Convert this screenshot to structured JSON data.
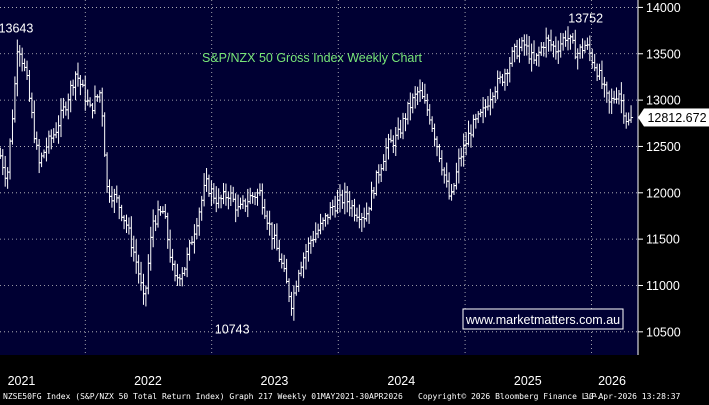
{
  "chart_data": {
    "type": "ohlc",
    "title": "S&P/NZX 50 Gross Index Weekly Chart",
    "source_badge": "www.marketmatters.com.au",
    "last_value_label": "12812.672",
    "last_value": 12812.672,
    "y_ticks": [
      10500,
      11000,
      11500,
      12000,
      12500,
      13000,
      13500,
      14000
    ],
    "ylim": [
      10250,
      14080
    ],
    "xlim": [
      "2021-04-30",
      "2026-05-15"
    ],
    "x_labels": [
      {
        "label": "2021",
        "date": "2021-07-01"
      },
      {
        "label": "2022",
        "date": "2022-07-01"
      },
      {
        "label": "2023",
        "date": "2023-07-01"
      },
      {
        "label": "2024",
        "date": "2024-07-01"
      },
      {
        "label": "2025",
        "date": "2025-07-01"
      },
      {
        "label": "2026",
        "date": "2026-03-01"
      }
    ],
    "year_boundaries": [
      "2022-01-01",
      "2023-01-01",
      "2024-01-01",
      "2025-01-01",
      "2026-01-01"
    ],
    "annotations": [
      {
        "label": "13643",
        "date": "2021-06-15",
        "value": 13643,
        "position": "above"
      },
      {
        "label": "10743",
        "date": "2023-03-01",
        "value": 10743,
        "position": "below"
      },
      {
        "label": "13752",
        "date": "2025-12-15",
        "value": 13752,
        "position": "above"
      }
    ],
    "series": [
      {
        "points": [
          {
            "date": "2021-05-01",
            "close": 12400
          },
          {
            "date": "2021-05-20",
            "close": 12150
          },
          {
            "date": "2021-06-10",
            "close": 13050
          },
          {
            "date": "2021-06-20",
            "close": 13643
          },
          {
            "date": "2021-07-15",
            "close": 13250
          },
          {
            "date": "2021-08-20",
            "close": 12300
          },
          {
            "date": "2021-09-10",
            "close": 12500
          },
          {
            "date": "2021-10-05",
            "close": 12650
          },
          {
            "date": "2021-11-05",
            "close": 12950
          },
          {
            "date": "2021-12-05",
            "close": 13300
          },
          {
            "date": "2022-01-15",
            "close": 12900
          },
          {
            "date": "2022-02-15",
            "close": 13100
          },
          {
            "date": "2022-03-05",
            "close": 12050
          },
          {
            "date": "2022-04-05",
            "close": 11900
          },
          {
            "date": "2022-05-01",
            "close": 11650
          },
          {
            "date": "2022-06-01",
            "close": 11200
          },
          {
            "date": "2022-06-20",
            "close": 10800
          },
          {
            "date": "2022-07-15",
            "close": 11700
          },
          {
            "date": "2022-08-15",
            "close": 11800
          },
          {
            "date": "2022-09-15",
            "close": 11050
          },
          {
            "date": "2022-10-15",
            "close": 11200
          },
          {
            "date": "2022-11-15",
            "close": 11650
          },
          {
            "date": "2022-12-15",
            "close": 12100
          },
          {
            "date": "2023-01-20",
            "close": 11900
          },
          {
            "date": "2023-02-20",
            "close": 12000
          },
          {
            "date": "2023-03-20",
            "close": 11800
          },
          {
            "date": "2023-04-20",
            "close": 11950
          },
          {
            "date": "2023-05-20",
            "close": 12000
          },
          {
            "date": "2023-06-20",
            "close": 11600
          },
          {
            "date": "2023-07-20",
            "close": 11250
          },
          {
            "date": "2023-08-20",
            "close": 10800
          },
          {
            "date": "2023-09-10",
            "close": 11200
          },
          {
            "date": "2023-10-15",
            "close": 11500
          },
          {
            "date": "2023-11-15",
            "close": 11650
          },
          {
            "date": "2023-12-15",
            "close": 11850
          },
          {
            "date": "2024-01-20",
            "close": 11950
          },
          {
            "date": "2024-02-20",
            "close": 11800
          },
          {
            "date": "2024-03-20",
            "close": 11750
          },
          {
            "date": "2024-04-20",
            "close": 12150
          },
          {
            "date": "2024-05-20",
            "close": 12500
          },
          {
            "date": "2024-06-20",
            "close": 12600
          },
          {
            "date": "2024-07-20",
            "close": 12900
          },
          {
            "date": "2024-08-20",
            "close": 13100
          },
          {
            "date": "2024-09-20",
            "close": 12850
          },
          {
            "date": "2024-10-20",
            "close": 12400
          },
          {
            "date": "2024-11-20",
            "close": 11900
          },
          {
            "date": "2024-12-15",
            "close": 12350
          },
          {
            "date": "2025-01-20",
            "close": 12700
          },
          {
            "date": "2025-02-20",
            "close": 12850
          },
          {
            "date": "2025-03-20",
            "close": 13100
          },
          {
            "date": "2025-04-20",
            "close": 13250
          },
          {
            "date": "2025-05-20",
            "close": 13500
          },
          {
            "date": "2025-06-20",
            "close": 13600
          },
          {
            "date": "2025-07-20",
            "close": 13400
          },
          {
            "date": "2025-08-20",
            "close": 13650
          },
          {
            "date": "2025-09-20",
            "close": 13550
          },
          {
            "date": "2025-10-20",
            "close": 13700
          },
          {
            "date": "2025-11-20",
            "close": 13500
          },
          {
            "date": "2025-12-15",
            "close": 13600
          },
          {
            "date": "2026-01-20",
            "close": 13300
          },
          {
            "date": "2026-02-20",
            "close": 12950
          },
          {
            "date": "2026-03-20",
            "close": 13100
          },
          {
            "date": "2026-04-15",
            "close": 12750
          },
          {
            "date": "2026-04-30",
            "close": 12812.672
          }
        ]
      }
    ],
    "grid": true,
    "colors": {
      "background": "#000000",
      "plot": "#000033",
      "bars": "#ffffff",
      "grid": "#c8c8c8",
      "title": "#78e678",
      "badge_text": "#ffffff",
      "badge_border": "#ffffff"
    }
  },
  "footer": {
    "left": "NZSE50FG Index (S&P/NZX 50 Total Return Index) Graph 217 Weekly 01MAY2021-30APR2026",
    "middle": "Copyright© 2026 Bloomberg Finance L.P.",
    "right": "30-Apr-2026 13:28:37"
  }
}
